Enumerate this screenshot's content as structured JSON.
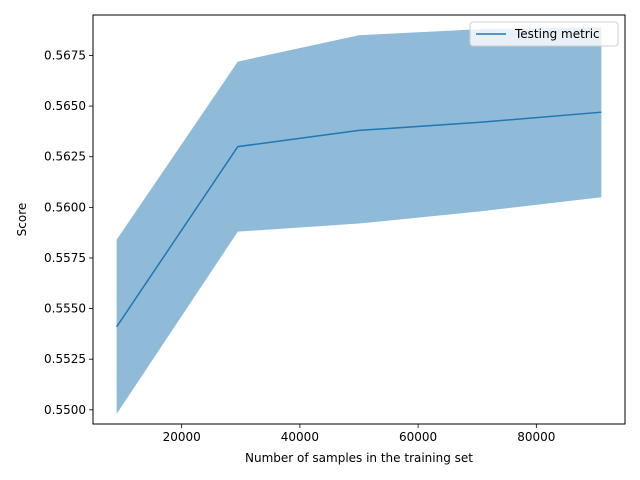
{
  "chart_data": {
    "type": "line",
    "title": "",
    "xlabel": "Number of samples in the training set",
    "ylabel": "Score",
    "xlim": [
      5000,
      95000
    ],
    "ylim": [
      0.5493,
      0.5695
    ],
    "x_ticks": [
      20000,
      40000,
      60000,
      80000
    ],
    "x_tick_labels": [
      "20000",
      "40000",
      "60000",
      "80000"
    ],
    "y_ticks": [
      0.55,
      0.5525,
      0.555,
      0.5575,
      0.56,
      0.5625,
      0.565,
      0.5675
    ],
    "y_tick_labels": [
      "0.5500",
      "0.5525",
      "0.5550",
      "0.5575",
      "0.5600",
      "0.5625",
      "0.5650",
      "0.5675"
    ],
    "grid": false,
    "legend_position": "top-right",
    "series": [
      {
        "name": "Testing metric",
        "color": "#1f77b4",
        "x": [
          9000,
          29500,
          50000,
          70500,
          91000
        ],
        "y": [
          0.5541,
          0.563,
          0.5638,
          0.5642,
          0.5647
        ],
        "band_lower": [
          0.5498,
          0.5588,
          0.5592,
          0.5598,
          0.5605
        ],
        "band_upper": [
          0.5584,
          0.5672,
          0.5685,
          0.5688,
          0.5689
        ],
        "band_color": "#8fbbd9"
      }
    ]
  }
}
